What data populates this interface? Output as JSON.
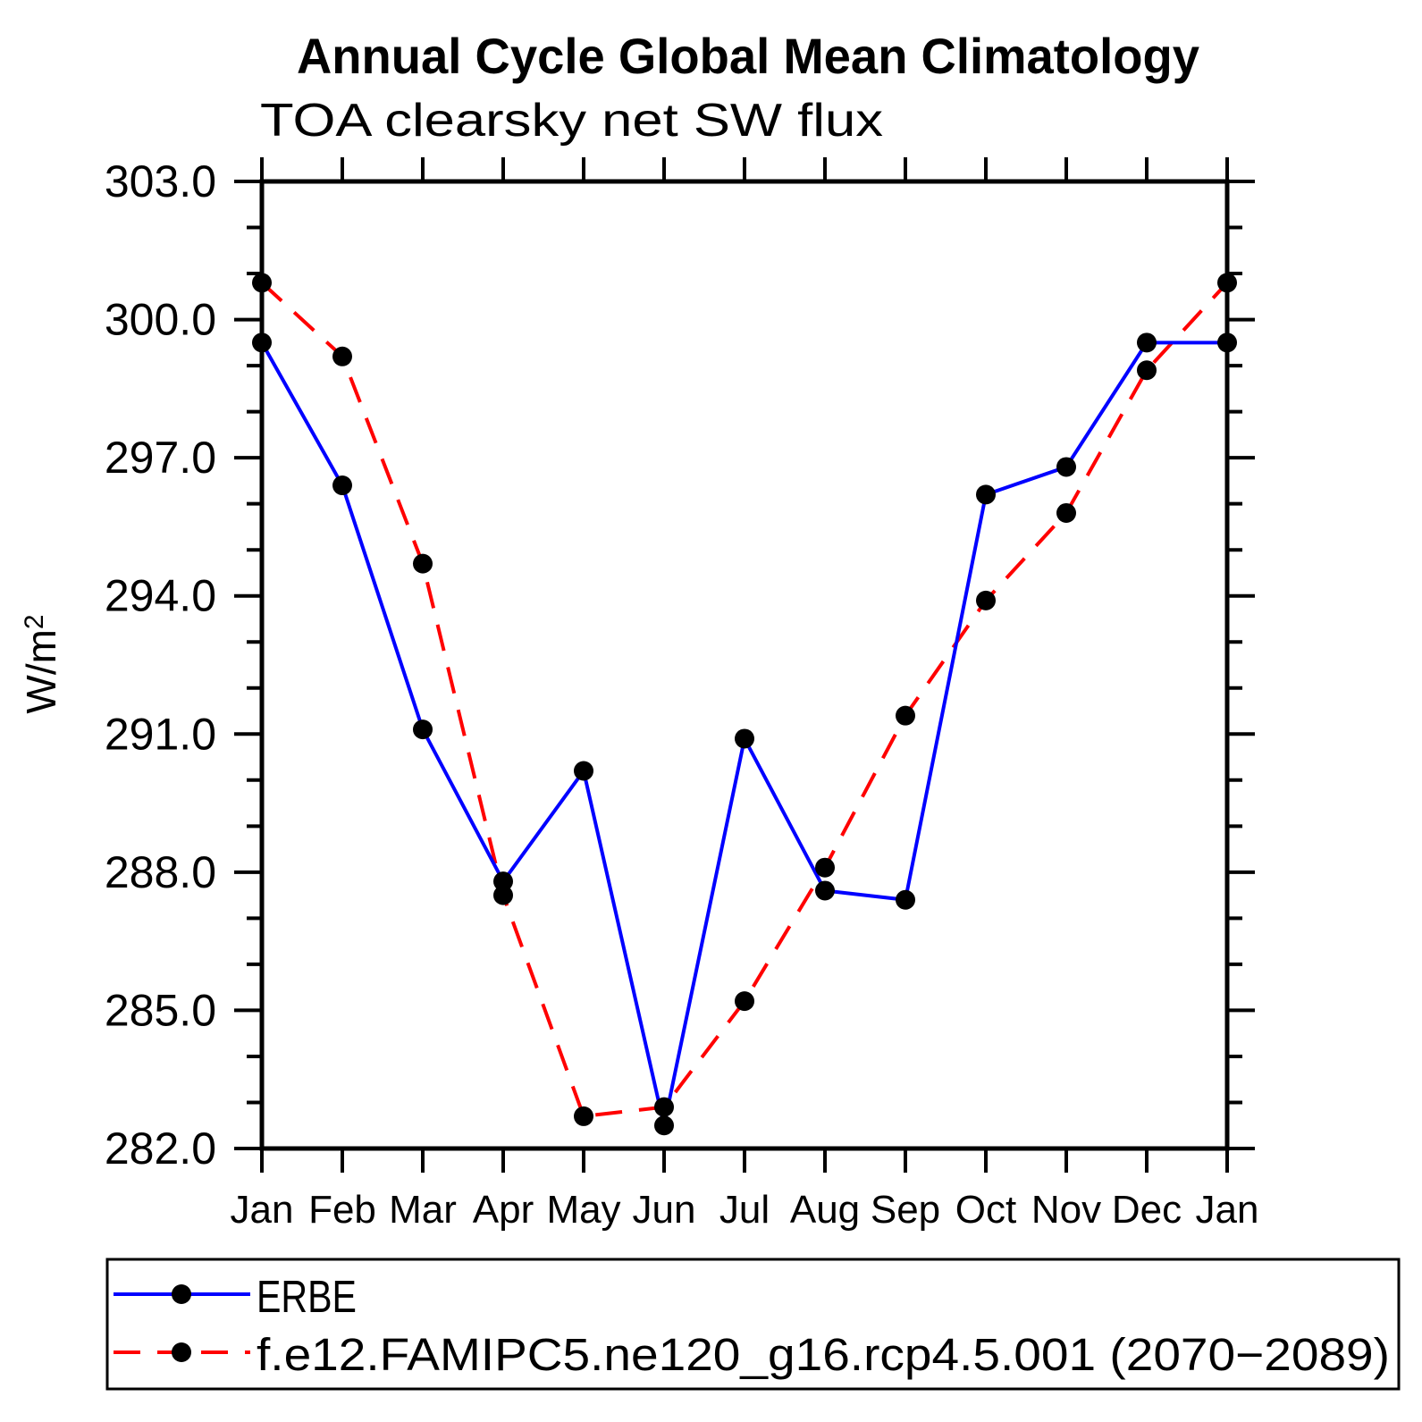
{
  "page": {
    "background": "#ffffff",
    "text_color": "#000000"
  },
  "chart_data": {
    "type": "line",
    "title": "Annual Cycle Global Mean Climatology",
    "subtitle": "TOA clearsky net SW flux",
    "ylabel": "W/m²",
    "xlabel": "",
    "x_categories": [
      "Jan",
      "Feb",
      "Mar",
      "Apr",
      "May",
      "Jun",
      "Jul",
      "Aug",
      "Sep",
      "Oct",
      "Nov",
      "Dec",
      "Jan"
    ],
    "ylim": [
      282.0,
      303.0
    ],
    "y_major_ticks": [
      282.0,
      285.0,
      288.0,
      291.0,
      294.0,
      297.0,
      300.0,
      303.0
    ],
    "y_minor_step": 1.0,
    "y_tick_label_format": "one_decimal",
    "grid": false,
    "legend_position": "bottom",
    "series": [
      {
        "name": "ERBE",
        "color": "#0000ff",
        "line_style": "solid",
        "marker": "circle",
        "marker_color": "#000000",
        "values": [
          299.5,
          296.4,
          291.1,
          287.8,
          290.2,
          282.5,
          290.9,
          287.6,
          287.4,
          296.2,
          296.8,
          299.5,
          299.5
        ]
      },
      {
        "name": "f.e12.FAMIPC5.ne120_g16.rcp4.5.001 (2070−2089)",
        "color": "#ff0000",
        "line_style": "dashed",
        "marker": "circle",
        "marker_color": "#000000",
        "values": [
          300.8,
          299.2,
          294.7,
          287.5,
          282.7,
          282.9,
          285.2,
          288.1,
          291.4,
          293.9,
          295.8,
          298.9,
          300.8
        ]
      }
    ]
  }
}
